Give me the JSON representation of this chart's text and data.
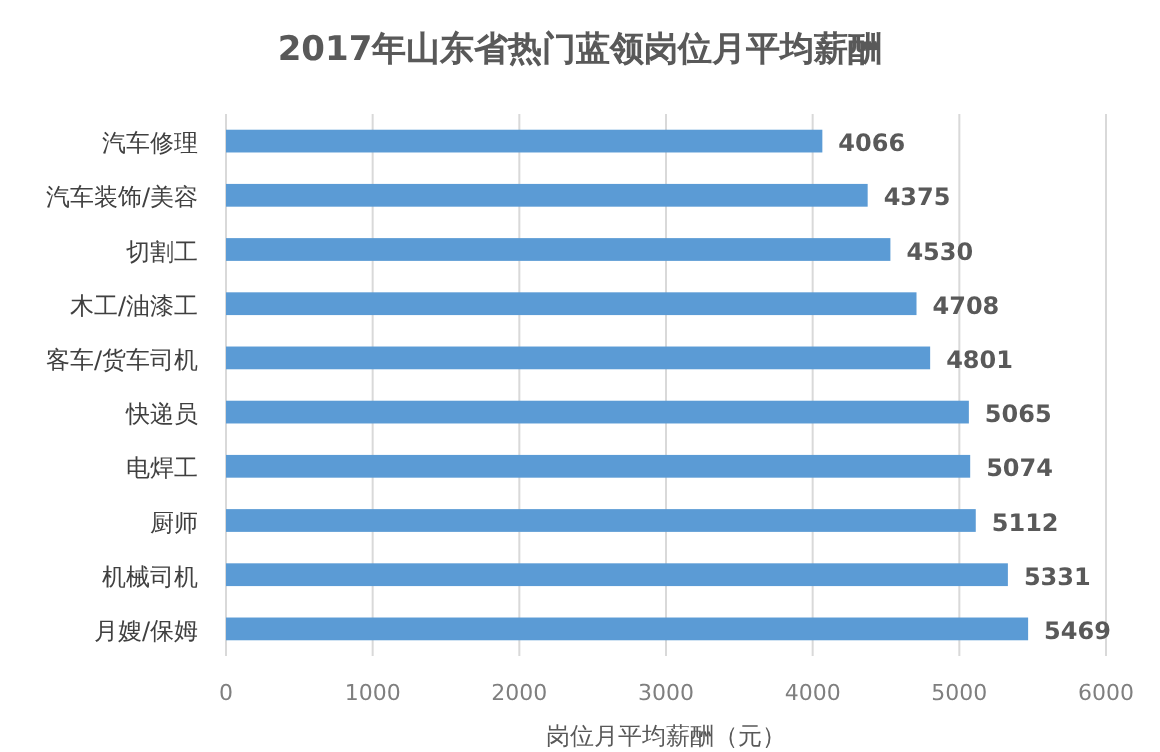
{
  "chart_data": {
    "type": "bar",
    "orientation": "horizontal",
    "title": "2017年山东省热门蓝领岗位月平均薪酬",
    "xlabel": "岗位月平均薪酬（元）",
    "categories": [
      "汽车修理",
      "汽车装饰/美容",
      "切割工",
      "木工/油漆工",
      "客车/货车司机",
      "快递员",
      "电焊工",
      "厨师",
      "机械司机",
      "月嫂/保姆"
    ],
    "values": [
      4066,
      4375,
      4530,
      4708,
      4801,
      5065,
      5074,
      5112,
      5331,
      5469
    ],
    "color": "#5b9bd5",
    "xlim": [
      0,
      6000
    ],
    "xticks": [
      0,
      1000,
      2000,
      3000,
      4000,
      5000,
      6000
    ],
    "grid": "x",
    "data_labels": true
  }
}
